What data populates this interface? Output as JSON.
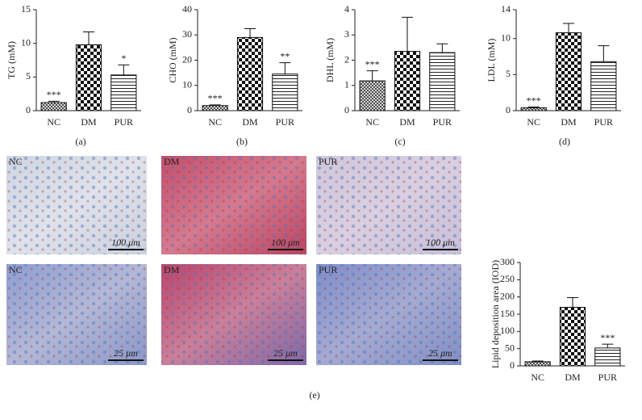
{
  "chart_data": [
    {
      "type": "bar",
      "panel_label": "(a)",
      "ylabel": "TG (mM)",
      "categories": [
        "NC",
        "DM",
        "PUR"
      ],
      "values": [
        1.2,
        9.8,
        5.3
      ],
      "errors": [
        0.2,
        1.9,
        1.5
      ],
      "annotations": [
        "***",
        null,
        "*"
      ],
      "patterns": [
        "crosshatch",
        "checker",
        "hlines"
      ],
      "ylim": [
        0,
        15
      ],
      "yticks": [
        0,
        5,
        10,
        15
      ]
    },
    {
      "type": "bar",
      "panel_label": "(b)",
      "ylabel": "CHO (mM)",
      "categories": [
        "NC",
        "DM",
        "PUR"
      ],
      "values": [
        2,
        29,
        14.5
      ],
      "errors": [
        0.3,
        3.5,
        4.5
      ],
      "annotations": [
        "***",
        null,
        "**"
      ],
      "patterns": [
        "crosshatch",
        "checker",
        "hlines"
      ],
      "ylim": [
        0,
        40
      ],
      "yticks": [
        0,
        10,
        20,
        30,
        40
      ]
    },
    {
      "type": "bar",
      "panel_label": "(c)",
      "ylabel": "DHL (mM)",
      "categories": [
        "NC",
        "DM",
        "PUR"
      ],
      "values": [
        1.18,
        2.35,
        2.3
      ],
      "errors": [
        0.4,
        1.35,
        0.35
      ],
      "annotations": [
        "***",
        null,
        null
      ],
      "patterns": [
        "crosshatch",
        "checker",
        "hlines"
      ],
      "ylim": [
        0,
        4
      ],
      "yticks": [
        0,
        1,
        2,
        3,
        4
      ]
    },
    {
      "type": "bar",
      "panel_label": "(d)",
      "ylabel": "LDL (mM)",
      "categories": [
        "NC",
        "DM",
        "PUR"
      ],
      "values": [
        0.4,
        10.8,
        6.8
      ],
      "errors": [
        0.1,
        1.3,
        2.2
      ],
      "annotations": [
        "***",
        null,
        null
      ],
      "patterns": [
        "crosshatch",
        "checker",
        "hlines"
      ],
      "ylim": [
        0,
        14
      ],
      "yticks": [
        0,
        5,
        10,
        14
      ]
    },
    {
      "type": "bar",
      "panel_label": "(e)",
      "ylabel": "Lipid deposition area (IOD)",
      "categories": [
        "NC",
        "DM",
        "PUR"
      ],
      "values": [
        12,
        170,
        52
      ],
      "errors": [
        2,
        28,
        11
      ],
      "annotations": [
        null,
        null,
        "***"
      ],
      "patterns": [
        "crosshatch",
        "checker",
        "hlines"
      ],
      "ylim": [
        0,
        300
      ],
      "yticks": [
        0,
        50,
        100,
        150,
        200,
        250,
        300
      ]
    }
  ],
  "micrographs": [
    {
      "label": "NC",
      "scale_bar": "100 μm"
    },
    {
      "label": "DM",
      "scale_bar": "100 μm"
    },
    {
      "label": "PUR",
      "scale_bar": "100 μm"
    },
    {
      "label": "NC",
      "scale_bar": "25 μm"
    },
    {
      "label": "DM",
      "scale_bar": "25 μm"
    },
    {
      "label": "PUR",
      "scale_bar": "25 μm"
    }
  ]
}
